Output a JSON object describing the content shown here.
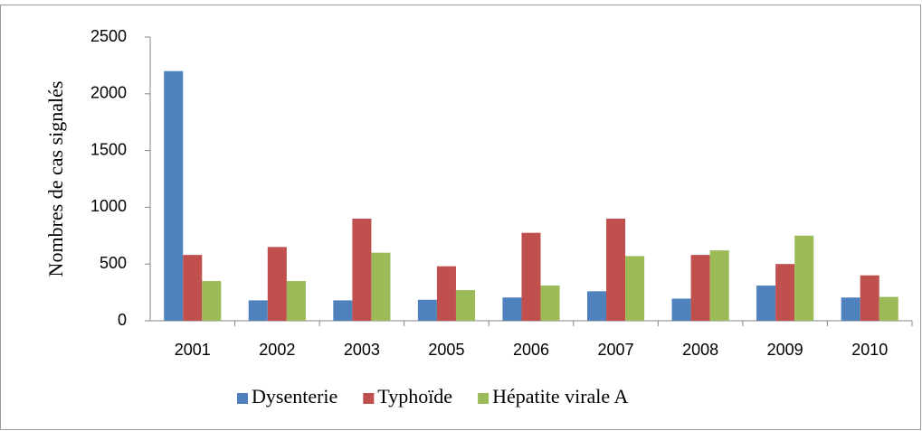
{
  "chart_data": {
    "type": "bar",
    "y_label": "Nombres de cas signalés",
    "categories": [
      "2001",
      "2002",
      "2003",
      "2005",
      "2006",
      "2007",
      "2008",
      "2009",
      "2010"
    ],
    "series": [
      {
        "name": "Dysenterie",
        "color": "#4f81bd",
        "values": [
          2200,
          180,
          180,
          185,
          205,
          260,
          195,
          310,
          205
        ]
      },
      {
        "name": "Typhoïde",
        "color": "#c0504d",
        "values": [
          580,
          650,
          900,
          480,
          775,
          900,
          580,
          500,
          400
        ]
      },
      {
        "name": "Hépatite virale A",
        "color": "#9bbb59",
        "values": [
          350,
          350,
          600,
          270,
          310,
          570,
          620,
          750,
          210
        ]
      }
    ],
    "ylim": [
      0,
      2500
    ],
    "yticks": [
      0,
      500,
      1000,
      1500,
      2000,
      2500
    ],
    "legend": "bottom"
  }
}
